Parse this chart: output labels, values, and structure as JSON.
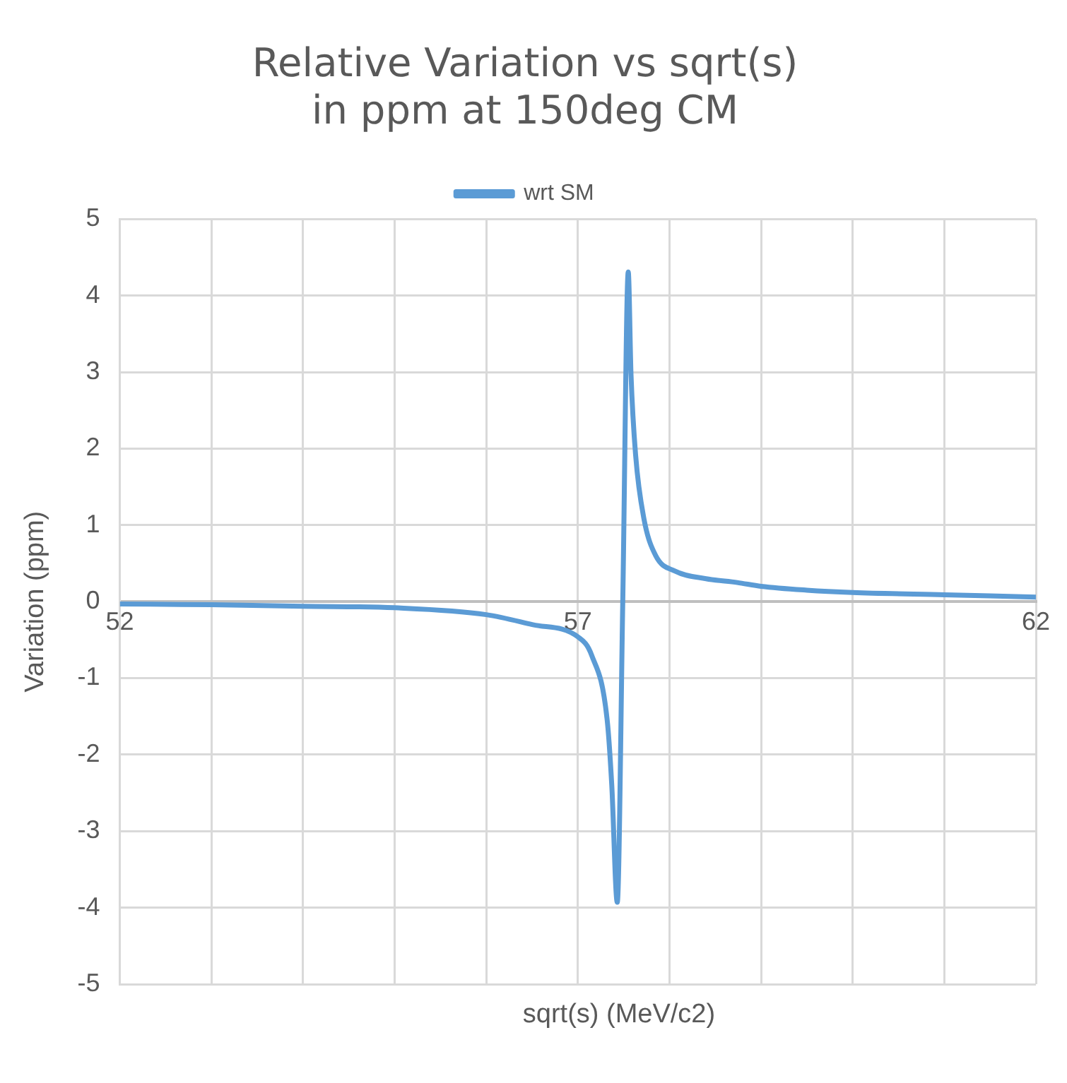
{
  "chart_data": {
    "type": "line",
    "title": "Relative Variation vs sqrt(s)\nin ppm at 150deg CM",
    "xlabel": "sqrt(s) (MeV/c2)",
    "ylabel": "Variation (ppm)",
    "x": [
      52,
      53,
      54,
      55,
      56,
      56.5,
      57,
      57.15,
      57.32,
      57.37,
      57.43,
      57.49,
      57.55,
      57.58,
      57.63,
      57.72,
      57.85,
      58.06,
      58.4,
      58.74,
      59,
      59.5,
      60,
      61,
      62
    ],
    "series": [
      {
        "name": "wrt SM",
        "color": "#5b9bd5",
        "values": [
          -0.03,
          -0.04,
          -0.06,
          -0.08,
          -0.17,
          -0.3,
          -0.46,
          -0.7,
          -1.55,
          -2.4,
          -3.93,
          0,
          4.31,
          2.97,
          1.92,
          1.09,
          0.6,
          0.4,
          0.3,
          0.25,
          0.2,
          0.15,
          0.12,
          0.09,
          0.06
        ]
      }
    ],
    "xlim": [
      52,
      62
    ],
    "xticks": [
      52,
      {
        "value": 53,
        "label": null
      },
      {
        "value": 54,
        "label": null
      },
      {
        "value": 55,
        "label": null
      },
      {
        "value": 56,
        "label": null
      },
      57,
      {
        "value": 58,
        "label": null
      },
      {
        "value": 59,
        "label": null
      },
      {
        "value": 60,
        "label": null
      },
      {
        "value": 61,
        "label": null
      },
      62
    ],
    "ylim": [
      -5,
      5
    ],
    "yticks": [
      -5,
      -4,
      -3,
      -2,
      -1,
      0,
      1,
      2,
      3,
      4,
      5
    ],
    "grid": true,
    "legend": "top",
    "marker": "none",
    "line_style": "solid"
  }
}
